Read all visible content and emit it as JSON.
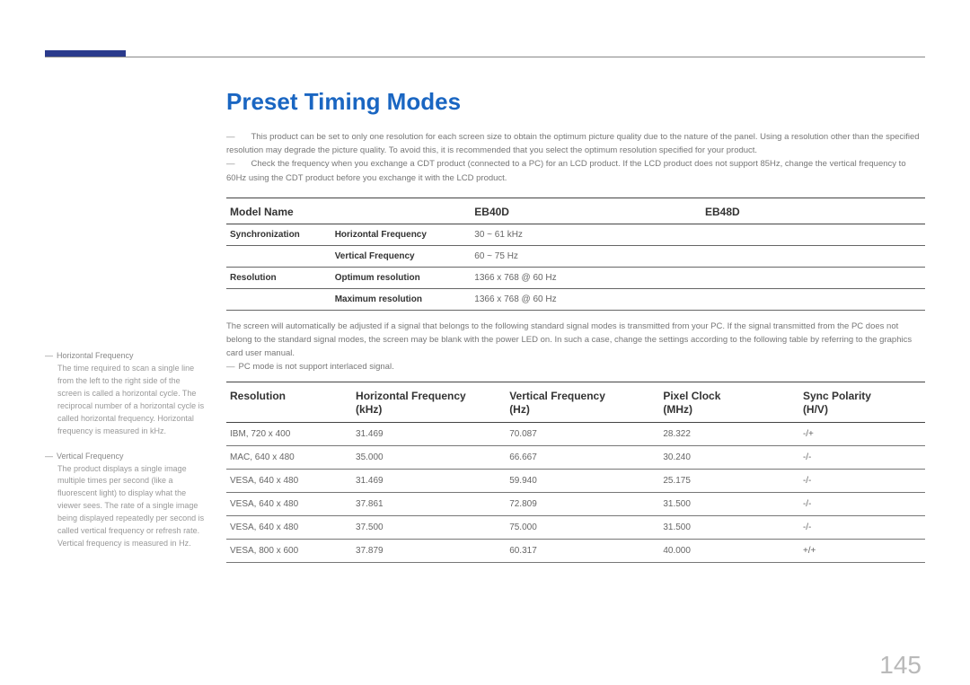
{
  "page": {
    "title": "Preset Timing Modes",
    "number": "145",
    "accent_color": "#2a3a8c",
    "heading_color": "#1a66c2"
  },
  "notes": {
    "note1": "This product can be set to only one resolution for each screen size to obtain the optimum picture quality due to the nature of the panel. Using a resolution other than the specified resolution may degrade the picture quality. To avoid this, it is recommended that you select the optimum resolution specified for your product.",
    "note2": "Check the frequency when you exchange a CDT product (connected to a PC) for an LCD product. If the LCD product does not support 85Hz, change the vertical frequency to 60Hz using the CDT product before you exchange it with the LCD product."
  },
  "sidebar": {
    "term1": "Horizontal Frequency",
    "def1": "The time required to scan a single line from the left to the right side of the screen is called a horizontal cycle. The reciprocal number of a horizontal cycle is called horizontal frequency. Horizontal frequency is measured in kHz.",
    "term2": "Vertical Frequency",
    "def2": "The product displays a single image multiple times per second (like a fluorescent light) to display what the viewer sees. The rate of a single image being displayed repeatedly per second is called vertical frequency or refresh rate. Vertical frequency is measured in Hz."
  },
  "table1": {
    "head": {
      "c1": "Model Name",
      "c2": "EB40D",
      "c3": "EB48D"
    },
    "rows": [
      {
        "g": "Synchronization",
        "l": "Horizontal Frequency",
        "v": "30 ~ 61 kHz"
      },
      {
        "g": "",
        "l": "Vertical Frequency",
        "v": "60 ~ 75 Hz"
      },
      {
        "g": "Resolution",
        "l": "Optimum resolution",
        "v": "1366 x 768 @ 60 Hz"
      },
      {
        "g": "",
        "l": "Maximum resolution",
        "v": "1366 x 768 @ 60 Hz"
      }
    ]
  },
  "between": {
    "para": "The screen will automatically be adjusted if a signal that belongs to the following standard signal modes is transmitted from your PC. If the signal transmitted from the PC does not belong to the standard signal modes, the screen may be blank with the power LED on. In such a case, change the settings according to the following table by referring to the graphics card user manual.",
    "note": "PC mode is not support interlaced signal."
  },
  "table2": {
    "head": {
      "c1a": "Resolution",
      "c1b": "",
      "c2a": "Horizontal Frequency",
      "c2b": "(kHz)",
      "c3a": "Vertical Frequency",
      "c3b": "(Hz)",
      "c4a": "Pixel Clock",
      "c4b": "(MHz)",
      "c5a": "Sync Polarity",
      "c5b": "(H/V)"
    },
    "rows": [
      {
        "r": "IBM, 720 x 400",
        "h": "31.469",
        "v": "70.087",
        "p": "28.322",
        "s": "-/+"
      },
      {
        "r": "MAC, 640 x 480",
        "h": "35.000",
        "v": "66.667",
        "p": "30.240",
        "s": "-/-"
      },
      {
        "r": "VESA, 640 x 480",
        "h": "31.469",
        "v": "59.940",
        "p": "25.175",
        "s": "-/-"
      },
      {
        "r": "VESA, 640 x 480",
        "h": "37.861",
        "v": "72.809",
        "p": "31.500",
        "s": "-/-"
      },
      {
        "r": "VESA, 640 x 480",
        "h": "37.500",
        "v": "75.000",
        "p": "31.500",
        "s": "-/-"
      },
      {
        "r": "VESA, 800 x 600",
        "h": "37.879",
        "v": "60.317",
        "p": "40.000",
        "s": "+/+"
      }
    ]
  }
}
